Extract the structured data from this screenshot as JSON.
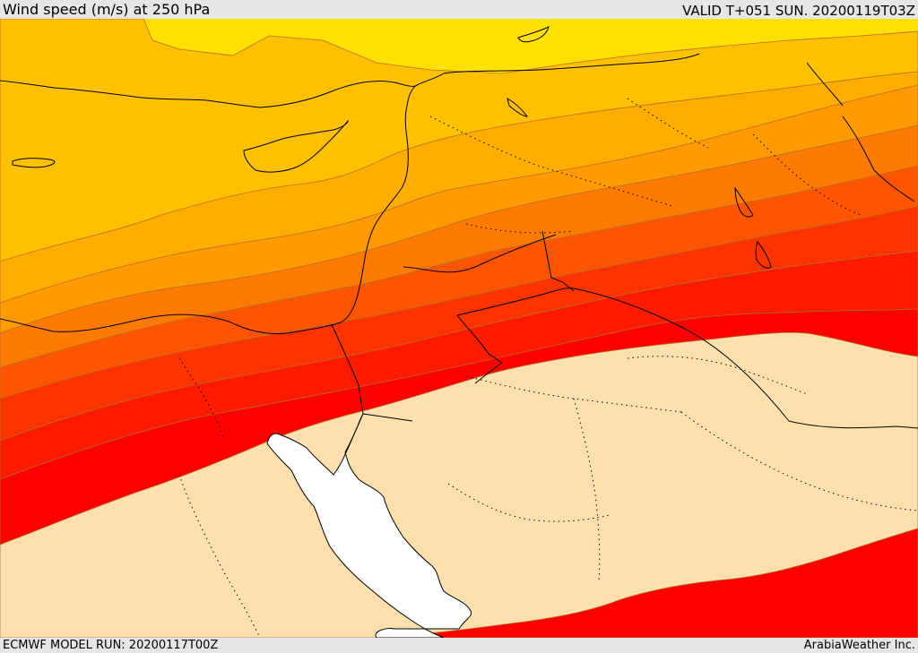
{
  "header": {
    "title": "Wind speed (m/s) at 250 hPa",
    "valid": "VALID T+051 SUN. 20200119T03Z"
  },
  "footer": {
    "model_run": "ECMWF MODEL RUN: 20200117T00Z",
    "brand": "ArabiaWeather Inc."
  },
  "map": {
    "variable": "wind speed",
    "pressure_level_hpa": 250,
    "units": "m/s",
    "colors": {
      "band_1": "#ffe000",
      "band_2": "#ffc000",
      "band_3": "#ffae00",
      "band_4": "#ff9a00",
      "band_5": "#ff7a00",
      "band_6": "#ff5500",
      "band_7": "#ff3300",
      "band_8": "#ff1a00",
      "band_9": "#ff0000",
      "land_low": "#fde0ad",
      "sea_uncolored": "#ffffff",
      "contour_line": "#a05050",
      "coastline": "#000000"
    }
  }
}
